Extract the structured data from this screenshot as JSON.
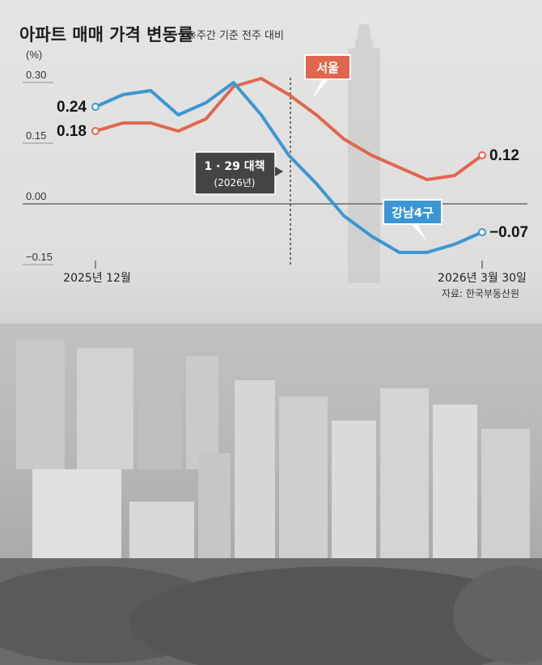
{
  "chart_data": {
    "type": "line",
    "title": "아파트 매매 가격 변동률",
    "subtitle": "※주간 기준 전주 대비",
    "y_unit": "(%)",
    "ylim": [
      -0.15,
      0.3
    ],
    "y_ticks": [
      {
        "value": 0.3,
        "label": "0.30"
      },
      {
        "value": 0.15,
        "label": "0.15"
      },
      {
        "value": 0.0,
        "label": "0.00"
      },
      {
        "value": -0.15,
        "label": "−0.15"
      }
    ],
    "x_labels": {
      "start": "2025년 12월",
      "end": "2026년 3월 30일"
    },
    "n_points": 15,
    "series": [
      {
        "name": "서울",
        "color": "#e0674f",
        "values": [
          0.18,
          0.2,
          0.2,
          0.18,
          0.21,
          0.29,
          0.31,
          0.27,
          0.22,
          0.16,
          0.12,
          0.09,
          0.06,
          0.07,
          0.12
        ],
        "start_label": "0.18",
        "end_label": "0.12"
      },
      {
        "name": "강남4구",
        "color": "#3b97d3",
        "values": [
          0.24,
          0.27,
          0.28,
          0.22,
          0.25,
          0.3,
          0.22,
          0.12,
          0.05,
          -0.03,
          -0.08,
          -0.12,
          -0.12,
          -0.1,
          -0.07
        ],
        "start_label": "0.24",
        "end_label": "−0.07"
      }
    ],
    "annotation": {
      "line1": "1 · 29 대책",
      "line2": "(2026년)",
      "x_index": 7
    },
    "source": "자료: 한국부동산원"
  }
}
